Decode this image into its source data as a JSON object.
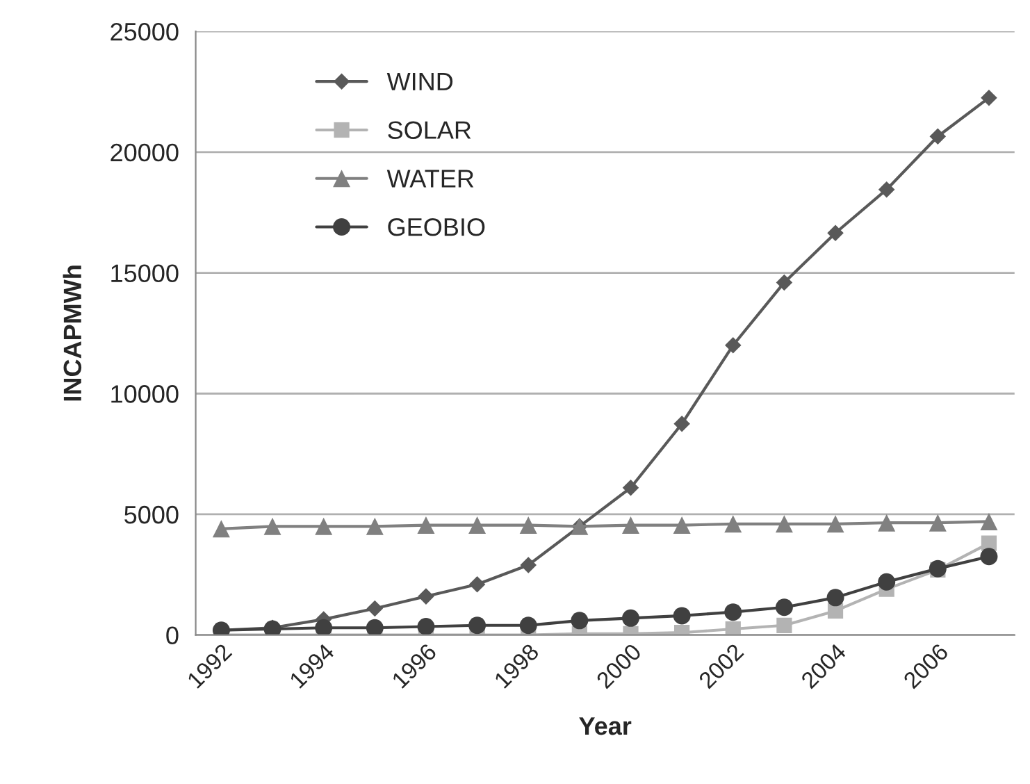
{
  "chart_data": {
    "type": "line",
    "xlabel": "Year",
    "ylabel": "INCAPMWh",
    "categories": [
      "1992",
      null,
      "1994",
      null,
      "1996",
      null,
      "1998",
      null,
      "2000",
      null,
      "2002",
      null,
      "2004",
      null,
      "2006",
      null
    ],
    "series": [
      {
        "name": "WIND",
        "color": "#595959",
        "marker": "diamond",
        "values": [
          200,
          300,
          650,
          1100,
          1600,
          2100,
          2900,
          4500,
          6100,
          8750,
          12000,
          14600,
          16650,
          18450,
          20650,
          22250
        ]
      },
      {
        "name": "SOLAR",
        "color": "#b3b3b3",
        "marker": "square",
        "values": [
          0,
          0,
          0,
          0,
          0,
          0,
          0,
          50,
          50,
          100,
          250,
          400,
          1000,
          1900,
          2700,
          3800
        ]
      },
      {
        "name": "WATER",
        "color": "#808080",
        "marker": "triangle",
        "values": [
          4400,
          4500,
          4500,
          4500,
          4550,
          4550,
          4550,
          4500,
          4550,
          4550,
          4600,
          4600,
          4600,
          4650,
          4650,
          4700
        ]
      },
      {
        "name": "GEOBIO",
        "color": "#404040",
        "marker": "circle",
        "values": [
          200,
          250,
          300,
          300,
          350,
          400,
          400,
          600,
          700,
          800,
          950,
          1150,
          1550,
          2200,
          2750,
          3250
        ]
      }
    ],
    "ylim": [
      0,
      25000
    ],
    "yticks": [
      0,
      5000,
      10000,
      15000,
      20000,
      25000
    ],
    "grid": "y",
    "legend": "top left",
    "line_style": "solid"
  }
}
